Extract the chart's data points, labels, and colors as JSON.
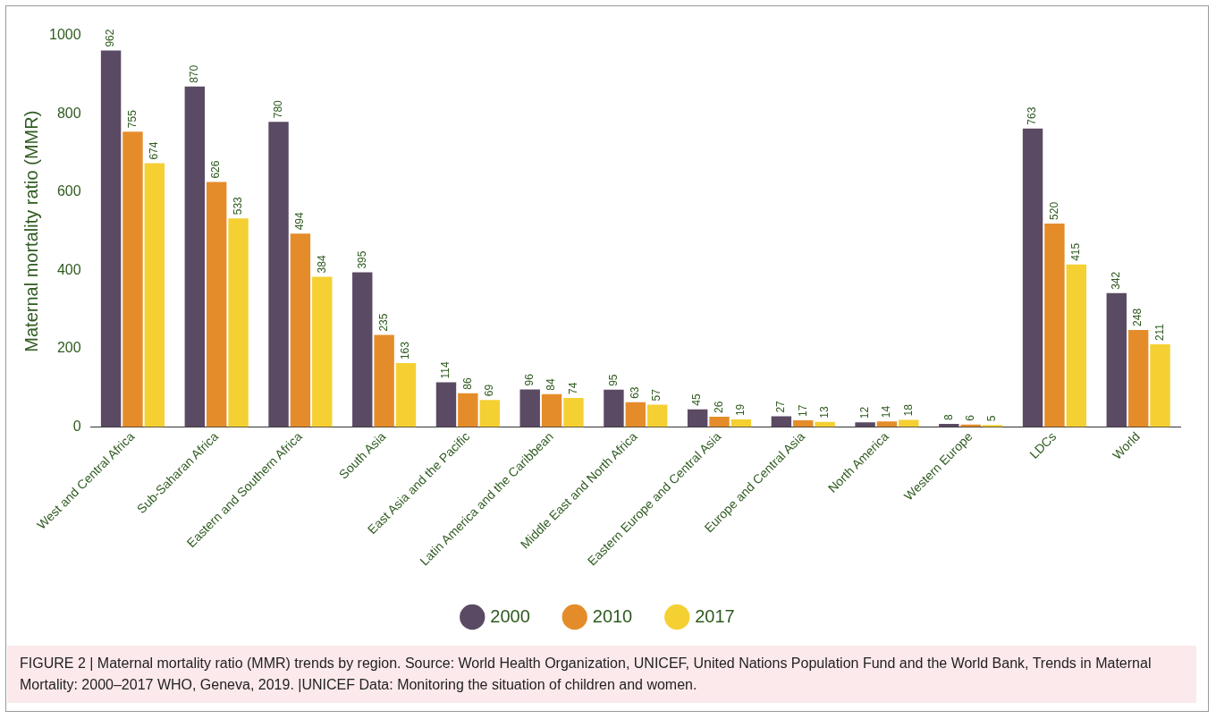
{
  "chart_data": {
    "type": "bar",
    "ylabel": "Maternal mortality ratio (MMR)",
    "categories": [
      "West and Central Africa",
      "Sub-Saharan Africa",
      "Eastern and Southern Africa",
      "South Asia",
      "East Asia and the Pacific",
      "Latin America and the Caribbean",
      "Middle East and North Africa",
      "Eastern Europe and Central Asia",
      "Europe and Central Asia",
      "North America",
      "Western Europe",
      "LDCs",
      "World"
    ],
    "series": [
      {
        "name": "2000",
        "color": "#5b4a63",
        "values": [
          962,
          870,
          780,
          395,
          114,
          96,
          95,
          45,
          27,
          12,
          8,
          763,
          342
        ]
      },
      {
        "name": "2010",
        "color": "#e58c2a",
        "values": [
          755,
          626,
          494,
          235,
          86,
          84,
          63,
          26,
          17,
          14,
          6,
          520,
          248
        ]
      },
      {
        "name": "2017",
        "color": "#f5d033",
        "values": [
          674,
          533,
          384,
          163,
          69,
          74,
          57,
          19,
          13,
          18,
          5,
          415,
          211
        ]
      }
    ],
    "ylim": [
      0,
      1000
    ],
    "yticks": [
      0,
      200,
      400,
      600,
      800,
      1000
    ],
    "grid": false,
    "legend": "bottom",
    "data_labels": true,
    "annotations": [
      "FIGURE 2 | Maternal mortality ratio (MMR) trends by region. Source: World Health Organization, UNICEF, United Nations Population Fund and the World Bank, Trends in Maternal Mortality: 2000–2017 WHO, Geneva, 2019. |UNICEF Data: Monitoring the situation of children and women."
    ]
  }
}
